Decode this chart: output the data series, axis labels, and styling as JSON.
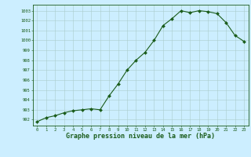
{
  "x": [
    0,
    1,
    2,
    3,
    4,
    5,
    6,
    7,
    8,
    9,
    10,
    11,
    12,
    13,
    14,
    15,
    16,
    17,
    18,
    19,
    20,
    21,
    22,
    23
  ],
  "y": [
    991.8,
    992.2,
    992.4,
    992.7,
    992.9,
    993.0,
    993.1,
    993.0,
    994.4,
    995.6,
    997.0,
    998.0,
    998.8,
    1000.0,
    1001.5,
    1002.2,
    1003.0,
    1002.8,
    1003.0,
    1002.9,
    1002.7,
    1001.8,
    1000.5,
    999.9
  ],
  "line_color": "#1a5c1a",
  "marker": "D",
  "marker_size": 2,
  "bg_color": "#cceeff",
  "grid_color": "#aacccc",
  "xlabel": "Graphe pression niveau de la mer (hPa)",
  "xlabel_fontsize": 6,
  "ylabel_ticks": [
    992,
    993,
    994,
    995,
    996,
    997,
    998,
    999,
    1000,
    1001,
    1002,
    1003
  ],
  "ylim": [
    991.4,
    1003.6
  ],
  "xlim": [
    -0.5,
    23.5
  ],
  "xticks": [
    0,
    1,
    2,
    3,
    4,
    5,
    6,
    7,
    8,
    9,
    10,
    11,
    12,
    13,
    14,
    15,
    16,
    17,
    18,
    19,
    20,
    21,
    22,
    23
  ]
}
